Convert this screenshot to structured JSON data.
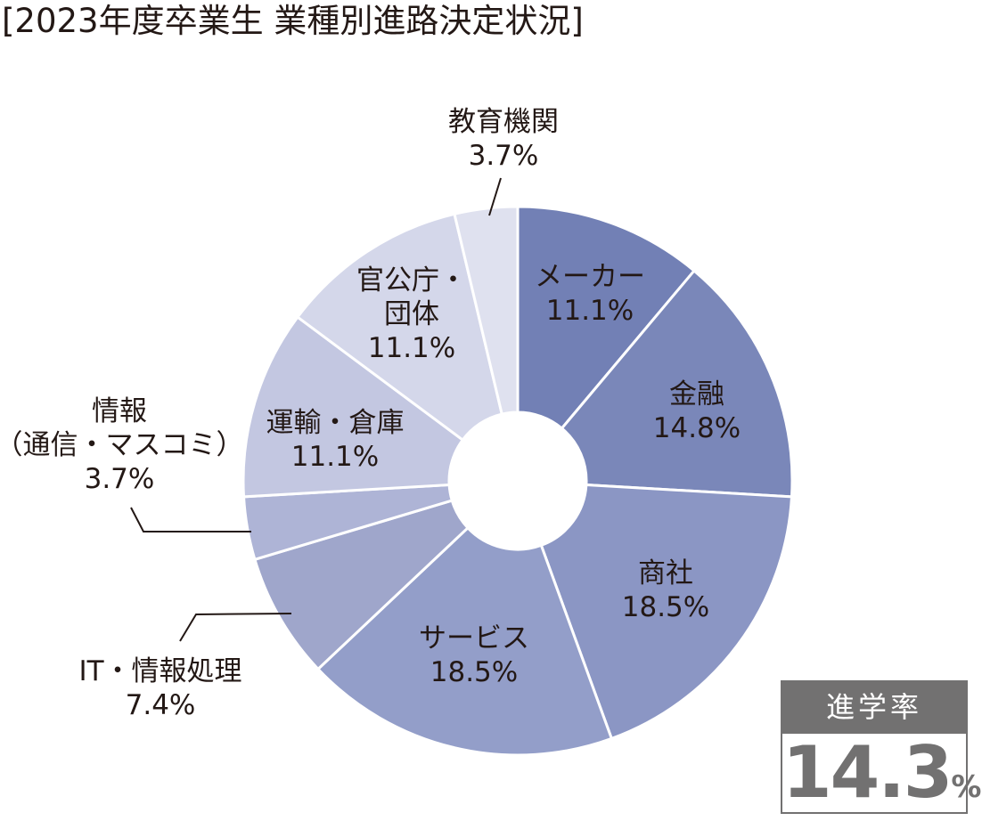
{
  "title": "[2023年度卒業生 業種別進路決定状況]",
  "chart_data": {
    "type": "pie",
    "donut": true,
    "title": "[2023年度卒業生 業種別進路決定状況]",
    "start_angle_deg": 0,
    "direction": "clockwise",
    "categories": [
      "メーカー",
      "金融",
      "商社",
      "サービス",
      "IT・情報処理",
      "情報（通信・マスコミ）",
      "運輸・倉庫",
      "官公庁・団体",
      "教育機関"
    ],
    "values": [
      11.1,
      14.8,
      18.5,
      18.5,
      7.4,
      3.7,
      11.1,
      11.1,
      3.7
    ],
    "unit": "%",
    "colors": [
      "#7280b5",
      "#7a87b9",
      "#8b96c4",
      "#939ec9",
      "#9fa6cb",
      "#aeb4d6",
      "#c3c7e1",
      "#d4d7ea",
      "#dfe1ef"
    ]
  },
  "labels": [
    {
      "lines": [
        "メーカー",
        "11.1%"
      ]
    },
    {
      "lines": [
        "金融",
        "14.8%"
      ]
    },
    {
      "lines": [
        "商社",
        "18.5%"
      ]
    },
    {
      "lines": [
        "サービス",
        "18.5%"
      ]
    },
    {
      "lines": [
        "IT・情報処理",
        "7.4%"
      ]
    },
    {
      "lines": [
        "情報",
        "（通信・マスコミ）",
        "3.7%"
      ]
    },
    {
      "lines": [
        "運輸・倉庫",
        "11.1%"
      ]
    },
    {
      "lines": [
        "官公庁・",
        "団体",
        "11.1%"
      ]
    },
    {
      "lines": [
        "教育機関",
        "3.7%"
      ]
    }
  ],
  "rate": {
    "label": "進学率",
    "value": "14.3",
    "unit": "%"
  }
}
